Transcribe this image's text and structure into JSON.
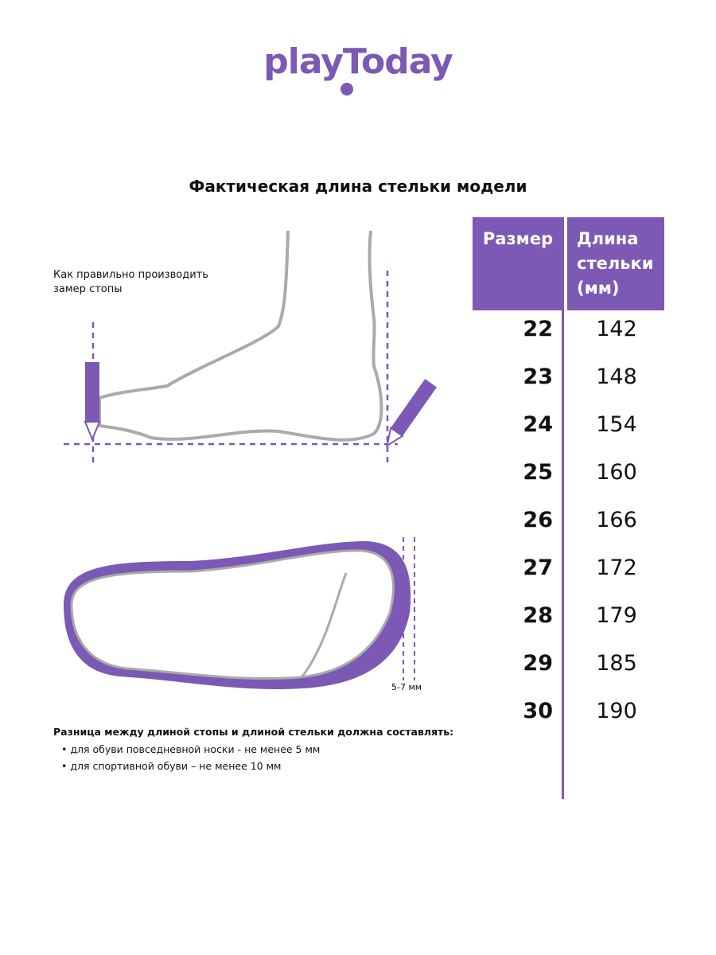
{
  "brand": {
    "logo": "playToday",
    "color": "#7b59b5"
  },
  "title": "Фактическая длина стельки модели",
  "table": {
    "headers": {
      "size": "Размер",
      "length": "Длина стельки (мм)"
    },
    "rows": [
      {
        "size": "22",
        "length": "142"
      },
      {
        "size": "23",
        "length": "148"
      },
      {
        "size": "24",
        "length": "154"
      },
      {
        "size": "25",
        "length": "160"
      },
      {
        "size": "26",
        "length": "166"
      },
      {
        "size": "27",
        "length": "172"
      },
      {
        "size": "28",
        "length": "179"
      },
      {
        "size": "29",
        "length": "185"
      },
      {
        "size": "30",
        "length": "190"
      }
    ]
  },
  "instructions": {
    "how_to": "Как правильно производить замер стопы",
    "gap_label": "5-7 мм",
    "difference_title": "Разница между длиной стопы и длиной стельки должна составлять:",
    "bullets": [
      "для обуви повседневной носки -  не менее 5 мм",
      "для спортивной обуви – не менее 10 мм"
    ]
  }
}
